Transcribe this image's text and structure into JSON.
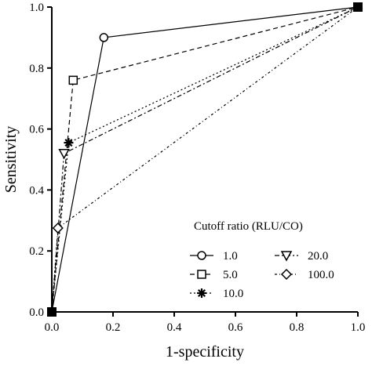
{
  "chart_data": {
    "type": "line",
    "xlabel": "1-specificity",
    "ylabel": "Sensitivity",
    "xlim": [
      0,
      1
    ],
    "ylim": [
      0,
      1
    ],
    "x_ticks": [
      "0.0",
      "0.2",
      "0.4",
      "0.6",
      "0.8",
      "1.0"
    ],
    "y_ticks": [
      "0.0",
      "0.2",
      "0.4",
      "0.6",
      "0.8",
      "1.0"
    ],
    "grid": false,
    "legend": {
      "title": "Cutoff ratio (RLU/CO)",
      "placement": "bottom-right",
      "columns": 2
    },
    "series": [
      {
        "name": "1.0",
        "marker": "circle",
        "dash": "solid",
        "points": [
          [
            0,
            0
          ],
          [
            0.17,
            0.9
          ],
          [
            1,
            1
          ]
        ]
      },
      {
        "name": "5.0",
        "marker": "square",
        "dash": "dashed",
        "points": [
          [
            0,
            0
          ],
          [
            0.07,
            0.76
          ],
          [
            1,
            1
          ]
        ]
      },
      {
        "name": "10.0",
        "marker": "asterisk",
        "dash": "dotted",
        "points": [
          [
            0,
            0
          ],
          [
            0.055,
            0.555
          ],
          [
            1,
            1
          ]
        ]
      },
      {
        "name": "20.0",
        "marker": "triangle-down",
        "dash": "dashdot",
        "points": [
          [
            0,
            0
          ],
          [
            0.04,
            0.52
          ],
          [
            1,
            1
          ]
        ]
      },
      {
        "name": "100.0",
        "marker": "diamond",
        "dash": "dashdot2",
        "points": [
          [
            0,
            0
          ],
          [
            0.02,
            0.275
          ],
          [
            1,
            1
          ]
        ]
      }
    ]
  }
}
